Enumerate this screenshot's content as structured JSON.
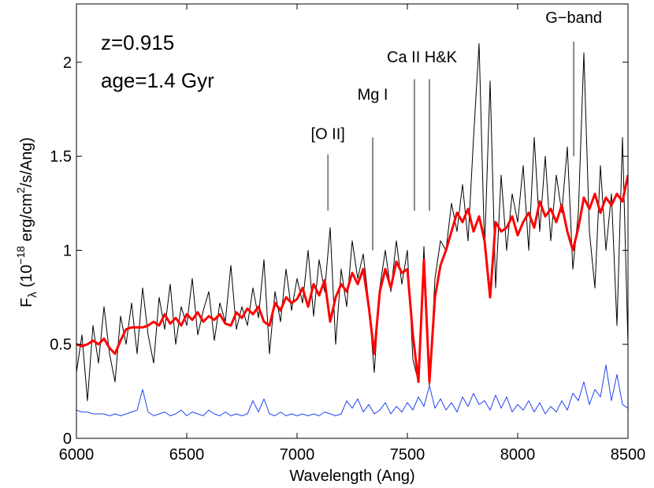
{
  "chart_data": {
    "type": "line",
    "xlabel": "Wavelength (Ang)",
    "ylabel": [
      "F",
      "λ",
      " (10",
      "−18",
      " erg/cm",
      "2",
      "/s/Ang)"
    ],
    "text_annotations": [
      "z=0.915",
      "age=1.4 Gyr"
    ],
    "line_markers": [
      {
        "text": "[O II]",
        "x": [
          7140
        ],
        "y": [
          1.21,
          1.51
        ],
        "label_y": 1.59
      },
      {
        "text": "Mg I",
        "x": [
          7343
        ],
        "y": [
          1.0,
          1.6
        ],
        "label_y": 1.8
      },
      {
        "text": "Ca II H&K",
        "x": [
          7532,
          7600
        ],
        "y": [
          1.21,
          1.91
        ],
        "label_y": 2.0
      },
      {
        "text": "G−band",
        "x": [
          8254
        ],
        "y": [
          1.5,
          2.11
        ],
        "label_y": 2.21
      }
    ],
    "xlim": [
      6000,
      8500
    ],
    "xticks": [
      6000,
      6500,
      7000,
      7500,
      8000,
      8500
    ],
    "ylim": [
      0,
      2.31
    ],
    "yticks": [
      0,
      0.5,
      1,
      1.5,
      2
    ],
    "x": [
      6000,
      6025,
      6050,
      6075,
      6100,
      6125,
      6150,
      6175,
      6200,
      6225,
      6250,
      6275,
      6300,
      6325,
      6350,
      6375,
      6400,
      6425,
      6450,
      6475,
      6500,
      6525,
      6550,
      6575,
      6600,
      6625,
      6650,
      6675,
      6700,
      6725,
      6750,
      6775,
      6800,
      6825,
      6850,
      6875,
      6900,
      6925,
      6950,
      6975,
      7000,
      7025,
      7050,
      7075,
      7100,
      7125,
      7150,
      7175,
      7200,
      7225,
      7250,
      7275,
      7300,
      7325,
      7350,
      7375,
      7400,
      7425,
      7450,
      7475,
      7500,
      7525,
      7550,
      7575,
      7600,
      7625,
      7650,
      7675,
      7700,
      7725,
      7750,
      7775,
      7800,
      7825,
      7850,
      7875,
      7900,
      7925,
      7950,
      7975,
      8000,
      8025,
      8050,
      8075,
      8100,
      8125,
      8150,
      8175,
      8200,
      8225,
      8250,
      8275,
      8300,
      8325,
      8350,
      8375,
      8400,
      8425,
      8450,
      8475,
      8500
    ],
    "series": [
      {
        "color": "#000000",
        "width": 1,
        "values": [
          0.35,
          0.55,
          0.2,
          0.6,
          0.4,
          0.7,
          0.45,
          0.3,
          0.65,
          0.5,
          0.72,
          0.45,
          0.8,
          0.55,
          0.4,
          0.75,
          0.58,
          0.82,
          0.5,
          0.7,
          0.6,
          0.85,
          0.55,
          0.68,
          0.78,
          0.52,
          0.72,
          0.62,
          0.92,
          0.58,
          0.7,
          0.6,
          0.8,
          0.64,
          0.95,
          0.45,
          0.78,
          0.62,
          0.9,
          0.68,
          0.85,
          0.72,
          1.0,
          0.65,
          0.95,
          0.78,
          1.12,
          0.5,
          0.9,
          0.7,
          1.05,
          0.85,
          0.98,
          0.72,
          0.35,
          0.8,
          1.0,
          0.78,
          1.05,
          0.82,
          1.0,
          0.42,
          0.3,
          1.02,
          0.28,
          0.85,
          1.05,
          1.0,
          1.25,
          1.1,
          1.35,
          1.05,
          1.6,
          2.1,
          1.0,
          1.9,
          0.8,
          1.4,
          1.0,
          1.3,
          1.15,
          1.45,
          1.0,
          1.6,
          1.1,
          1.5,
          1.05,
          1.4,
          1.2,
          1.55,
          0.9,
          1.2,
          2.05,
          1.1,
          0.8,
          1.45,
          1.0,
          1.3,
          0.6,
          1.6,
          0.5
        ]
      },
      {
        "color": "#ff0000",
        "width": 3,
        "values": [
          0.5,
          0.49,
          0.5,
          0.52,
          0.5,
          0.53,
          0.48,
          0.45,
          0.52,
          0.58,
          0.59,
          0.59,
          0.59,
          0.6,
          0.62,
          0.6,
          0.66,
          0.61,
          0.64,
          0.6,
          0.66,
          0.63,
          0.67,
          0.62,
          0.65,
          0.63,
          0.66,
          0.61,
          0.6,
          0.67,
          0.64,
          0.69,
          0.66,
          0.7,
          0.62,
          0.6,
          0.72,
          0.68,
          0.75,
          0.72,
          0.74,
          0.8,
          0.7,
          0.82,
          0.76,
          0.84,
          0.62,
          0.75,
          0.82,
          0.78,
          0.88,
          0.82,
          0.9,
          0.7,
          0.45,
          0.78,
          0.9,
          0.8,
          0.94,
          0.88,
          0.9,
          0.55,
          0.3,
          0.95,
          0.3,
          0.75,
          0.92,
          1.0,
          1.1,
          1.2,
          1.15,
          1.22,
          1.1,
          1.18,
          1.05,
          0.75,
          1.15,
          1.1,
          1.12,
          1.18,
          1.08,
          1.15,
          1.2,
          1.12,
          1.26,
          1.18,
          1.22,
          1.15,
          1.24,
          1.1,
          1.0,
          1.12,
          1.28,
          1.22,
          1.3,
          1.2,
          1.28,
          1.24,
          1.3,
          1.26,
          1.4
        ]
      },
      {
        "color": "#2244ee",
        "width": 1,
        "values": [
          0.15,
          0.14,
          0.14,
          0.13,
          0.13,
          0.13,
          0.12,
          0.13,
          0.12,
          0.13,
          0.14,
          0.15,
          0.26,
          0.14,
          0.12,
          0.13,
          0.14,
          0.12,
          0.13,
          0.15,
          0.12,
          0.14,
          0.13,
          0.12,
          0.15,
          0.13,
          0.12,
          0.14,
          0.12,
          0.13,
          0.12,
          0.13,
          0.2,
          0.14,
          0.21,
          0.13,
          0.12,
          0.14,
          0.12,
          0.13,
          0.12,
          0.13,
          0.12,
          0.13,
          0.12,
          0.14,
          0.13,
          0.12,
          0.13,
          0.2,
          0.16,
          0.21,
          0.14,
          0.18,
          0.13,
          0.15,
          0.19,
          0.13,
          0.17,
          0.14,
          0.19,
          0.15,
          0.22,
          0.17,
          0.28,
          0.16,
          0.21,
          0.15,
          0.19,
          0.14,
          0.22,
          0.17,
          0.24,
          0.18,
          0.2,
          0.15,
          0.23,
          0.16,
          0.22,
          0.14,
          0.18,
          0.15,
          0.2,
          0.14,
          0.19,
          0.13,
          0.17,
          0.14,
          0.2,
          0.15,
          0.24,
          0.2,
          0.3,
          0.18,
          0.26,
          0.22,
          0.39,
          0.2,
          0.34,
          0.18,
          0.16
        ]
      }
    ]
  }
}
